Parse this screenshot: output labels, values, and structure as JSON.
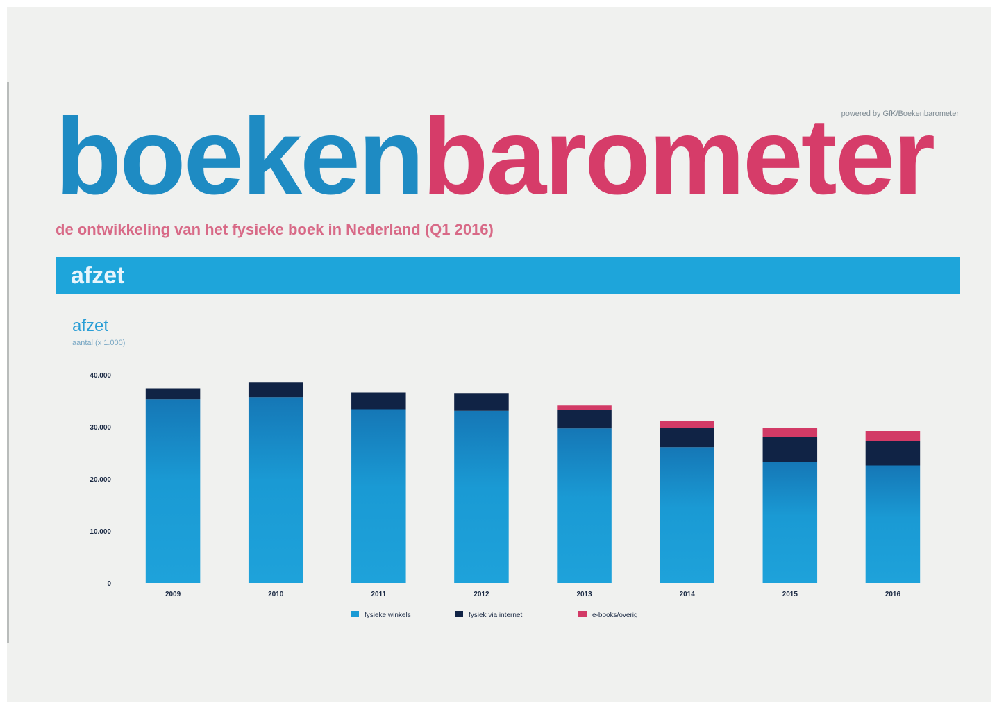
{
  "header": {
    "powered_by": "powered by GfK/Boekenbarometer",
    "logo_part1": "boeken",
    "logo_part2": "barometer",
    "subtitle": "de ontwikkeling van het fysieke boek in Nederland (Q1 2016)"
  },
  "section": {
    "title": "afzet"
  },
  "colors": {
    "brand_blue": "#1e8bc3",
    "brand_pink": "#d63c69",
    "bar_section": "#1ea5da",
    "series_store": "#1a9ad4",
    "series_online": "#102345",
    "series_third": "#d23a66"
  },
  "chart_data": {
    "type": "bar",
    "stacked": true,
    "title": "afzet",
    "subtitle": "aantal (x 1.000)",
    "categories": [
      "2009",
      "2010",
      "2011",
      "2012",
      "2013",
      "2014",
      "2015",
      "2016"
    ],
    "ylim": [
      0,
      40000
    ],
    "yticks": [
      "0",
      "10.000",
      "20.000",
      "30.000",
      "40.000"
    ],
    "series": [
      {
        "name": "fysieke winkels",
        "color": "#1a9ad4",
        "values": [
          35300,
          35700,
          33400,
          33100,
          29700,
          26100,
          23300,
          22600
        ]
      },
      {
        "name": "fysiek via internet",
        "color": "#102345",
        "values": [
          2100,
          2800,
          3200,
          3400,
          3600,
          3700,
          4700,
          4700
        ]
      },
      {
        "name": "e-books/overig",
        "color": "#d23a66",
        "values": [
          0,
          0,
          0,
          0,
          800,
          1300,
          1800,
          1900
        ]
      }
    ],
    "legend_position": "bottom",
    "grid": false
  }
}
